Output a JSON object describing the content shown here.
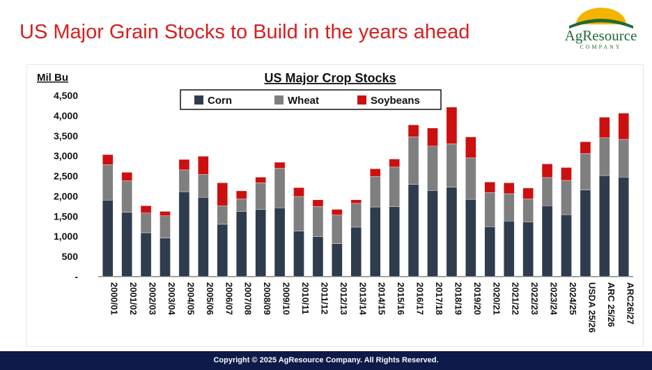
{
  "slide": {
    "title": "US Major Grain Stocks to Build in the years ahead",
    "logo_name": "AgResource",
    "logo_sub": "COMPANY",
    "footer": "Copyright © 2025 AgResource Company.  All Rights Reserved."
  },
  "colors": {
    "title": "#d42020",
    "corn": "#2f3c4d",
    "wheat": "#7f7f7f",
    "soybeans": "#cc1010",
    "footer_bg": "#0d1a4a",
    "logo_green": "#1f6a35"
  },
  "chart_data": {
    "type": "bar",
    "stacked": true,
    "title": "US Major Crop Stocks",
    "ylabel": "Mil Bu",
    "xlabel": "",
    "ylim": [
      0,
      4500
    ],
    "yticks": [
      {
        "value": 0,
        "label": "-"
      },
      {
        "value": 500,
        "label": "500"
      },
      {
        "value": 1000,
        "label": "1,000"
      },
      {
        "value": 1500,
        "label": "1,500"
      },
      {
        "value": 2000,
        "label": "2,000"
      },
      {
        "value": 2500,
        "label": "2,500"
      },
      {
        "value": 3000,
        "label": "3,000"
      },
      {
        "value": 3500,
        "label": "3,500"
      },
      {
        "value": 4000,
        "label": "4,000"
      },
      {
        "value": 4500,
        "label": "4,500"
      }
    ],
    "grid": false,
    "legend_position": "top-center",
    "categories": [
      "2000/01",
      "2001/02",
      "2002/03",
      "2003/04",
      "2004/05",
      "2005/06",
      "2006/07",
      "2007/08",
      "2008/09",
      "2009/10",
      "2010/11",
      "2011/12",
      "2012/13",
      "2013/14",
      "2014/15",
      "2015/16",
      "2016/17",
      "2017/18",
      "2018/19",
      "2019/20",
      "2020/21",
      "2021/22",
      "2022/23",
      "2023/24",
      "2024/25",
      "USDA 25/26",
      "ARC 25/26",
      "ARC26/27"
    ],
    "series": [
      {
        "name": "Corn",
        "values": [
          1900,
          1600,
          1090,
          960,
          2110,
          1970,
          1300,
          1620,
          1670,
          1710,
          1130,
          990,
          820,
          1230,
          1730,
          1740,
          2290,
          2140,
          2220,
          1920,
          1240,
          1380,
          1360,
          1760,
          1540,
          2150,
          2510,
          2470
        ]
      },
      {
        "name": "Wheat",
        "values": [
          880,
          780,
          490,
          550,
          540,
          570,
          460,
          310,
          660,
          980,
          860,
          750,
          710,
          590,
          760,
          980,
          1180,
          1100,
          1080,
          1030,
          850,
          680,
          570,
          700,
          850,
          910,
          940,
          940
        ]
      },
      {
        "name": "Soybeans",
        "values": [
          250,
          210,
          180,
          110,
          260,
          450,
          570,
          200,
          140,
          150,
          220,
          170,
          140,
          90,
          190,
          200,
          300,
          450,
          910,
          520,
          260,
          270,
          270,
          340,
          320,
          290,
          510,
          650
        ]
      }
    ]
  }
}
